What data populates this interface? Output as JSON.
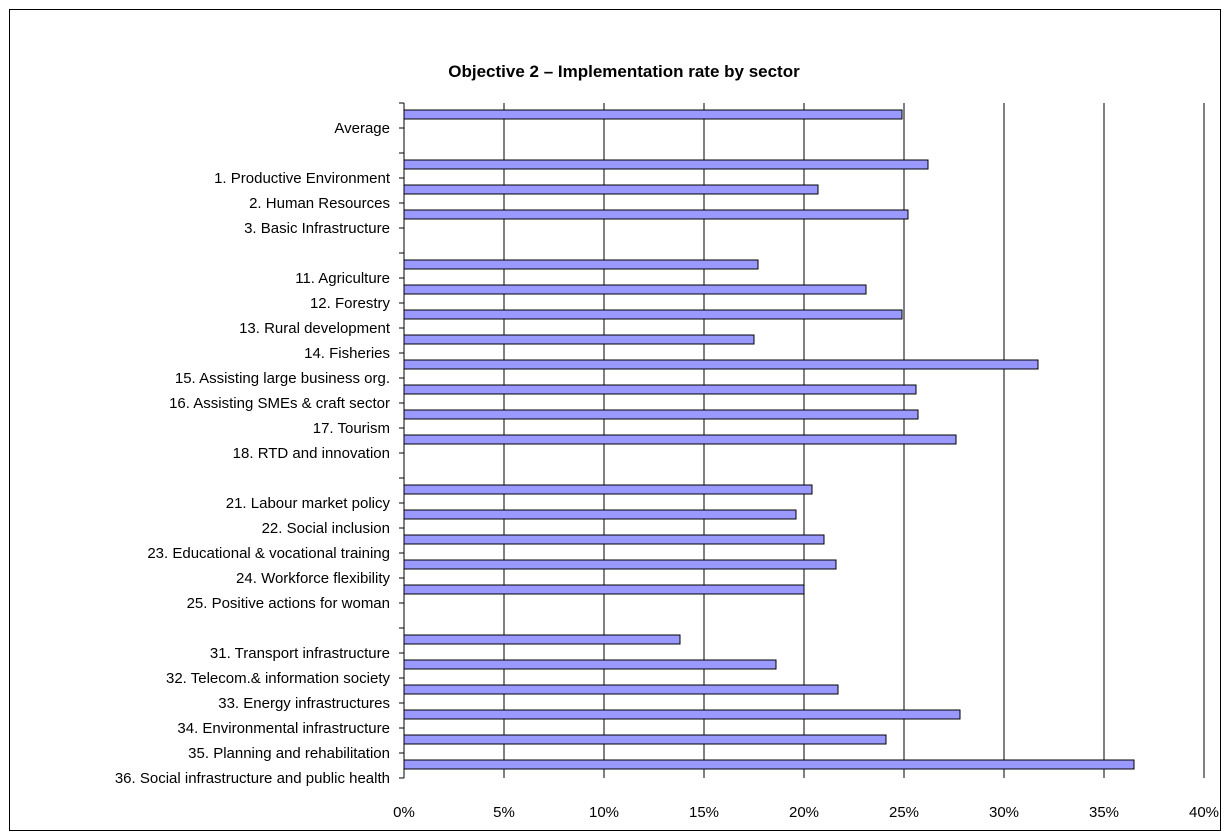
{
  "chart_data": {
    "type": "bar",
    "orientation": "horizontal",
    "title": "Objective 2 – Implementation rate by sector",
    "xlabel": "",
    "ylabel": "",
    "xlim": [
      0,
      40
    ],
    "x_tick_labels": [
      "0%",
      "5%",
      "10%",
      "15%",
      "20%",
      "25%",
      "30%",
      "35%",
      "40%"
    ],
    "grid": "vertical gridlines at every 5%",
    "legend": "none",
    "bar_color": "#9999ff",
    "categories": [
      "Average",
      "",
      "1. Productive Environment",
      "2. Human Resources",
      "3. Basic Infrastructure",
      "",
      "11. Agriculture",
      "12. Forestry",
      "13. Rural development",
      "14. Fisheries",
      "15. Assisting large business org.",
      "16. Assisting SMEs & craft sector",
      "17. Tourism",
      "18. RTD and innovation",
      "",
      "21. Labour market policy",
      "22. Social inclusion",
      "23. Educational & vocational training",
      "24. Workforce flexibility",
      "25. Positive actions for woman",
      "",
      "31. Transport infrastructure",
      "32. Telecom.& information society",
      "33. Energy infrastructures",
      "34. Environmental infrastructure",
      "35. Planning and rehabilitation",
      "36. Social infrastructure and public health"
    ],
    "values": [
      24.9,
      null,
      26.2,
      20.7,
      25.2,
      null,
      17.7,
      23.1,
      24.9,
      17.5,
      31.7,
      25.6,
      25.7,
      27.6,
      null,
      20.4,
      19.6,
      21.0,
      21.6,
      20.0,
      null,
      13.8,
      18.6,
      21.7,
      27.8,
      24.1,
      36.5
    ]
  }
}
